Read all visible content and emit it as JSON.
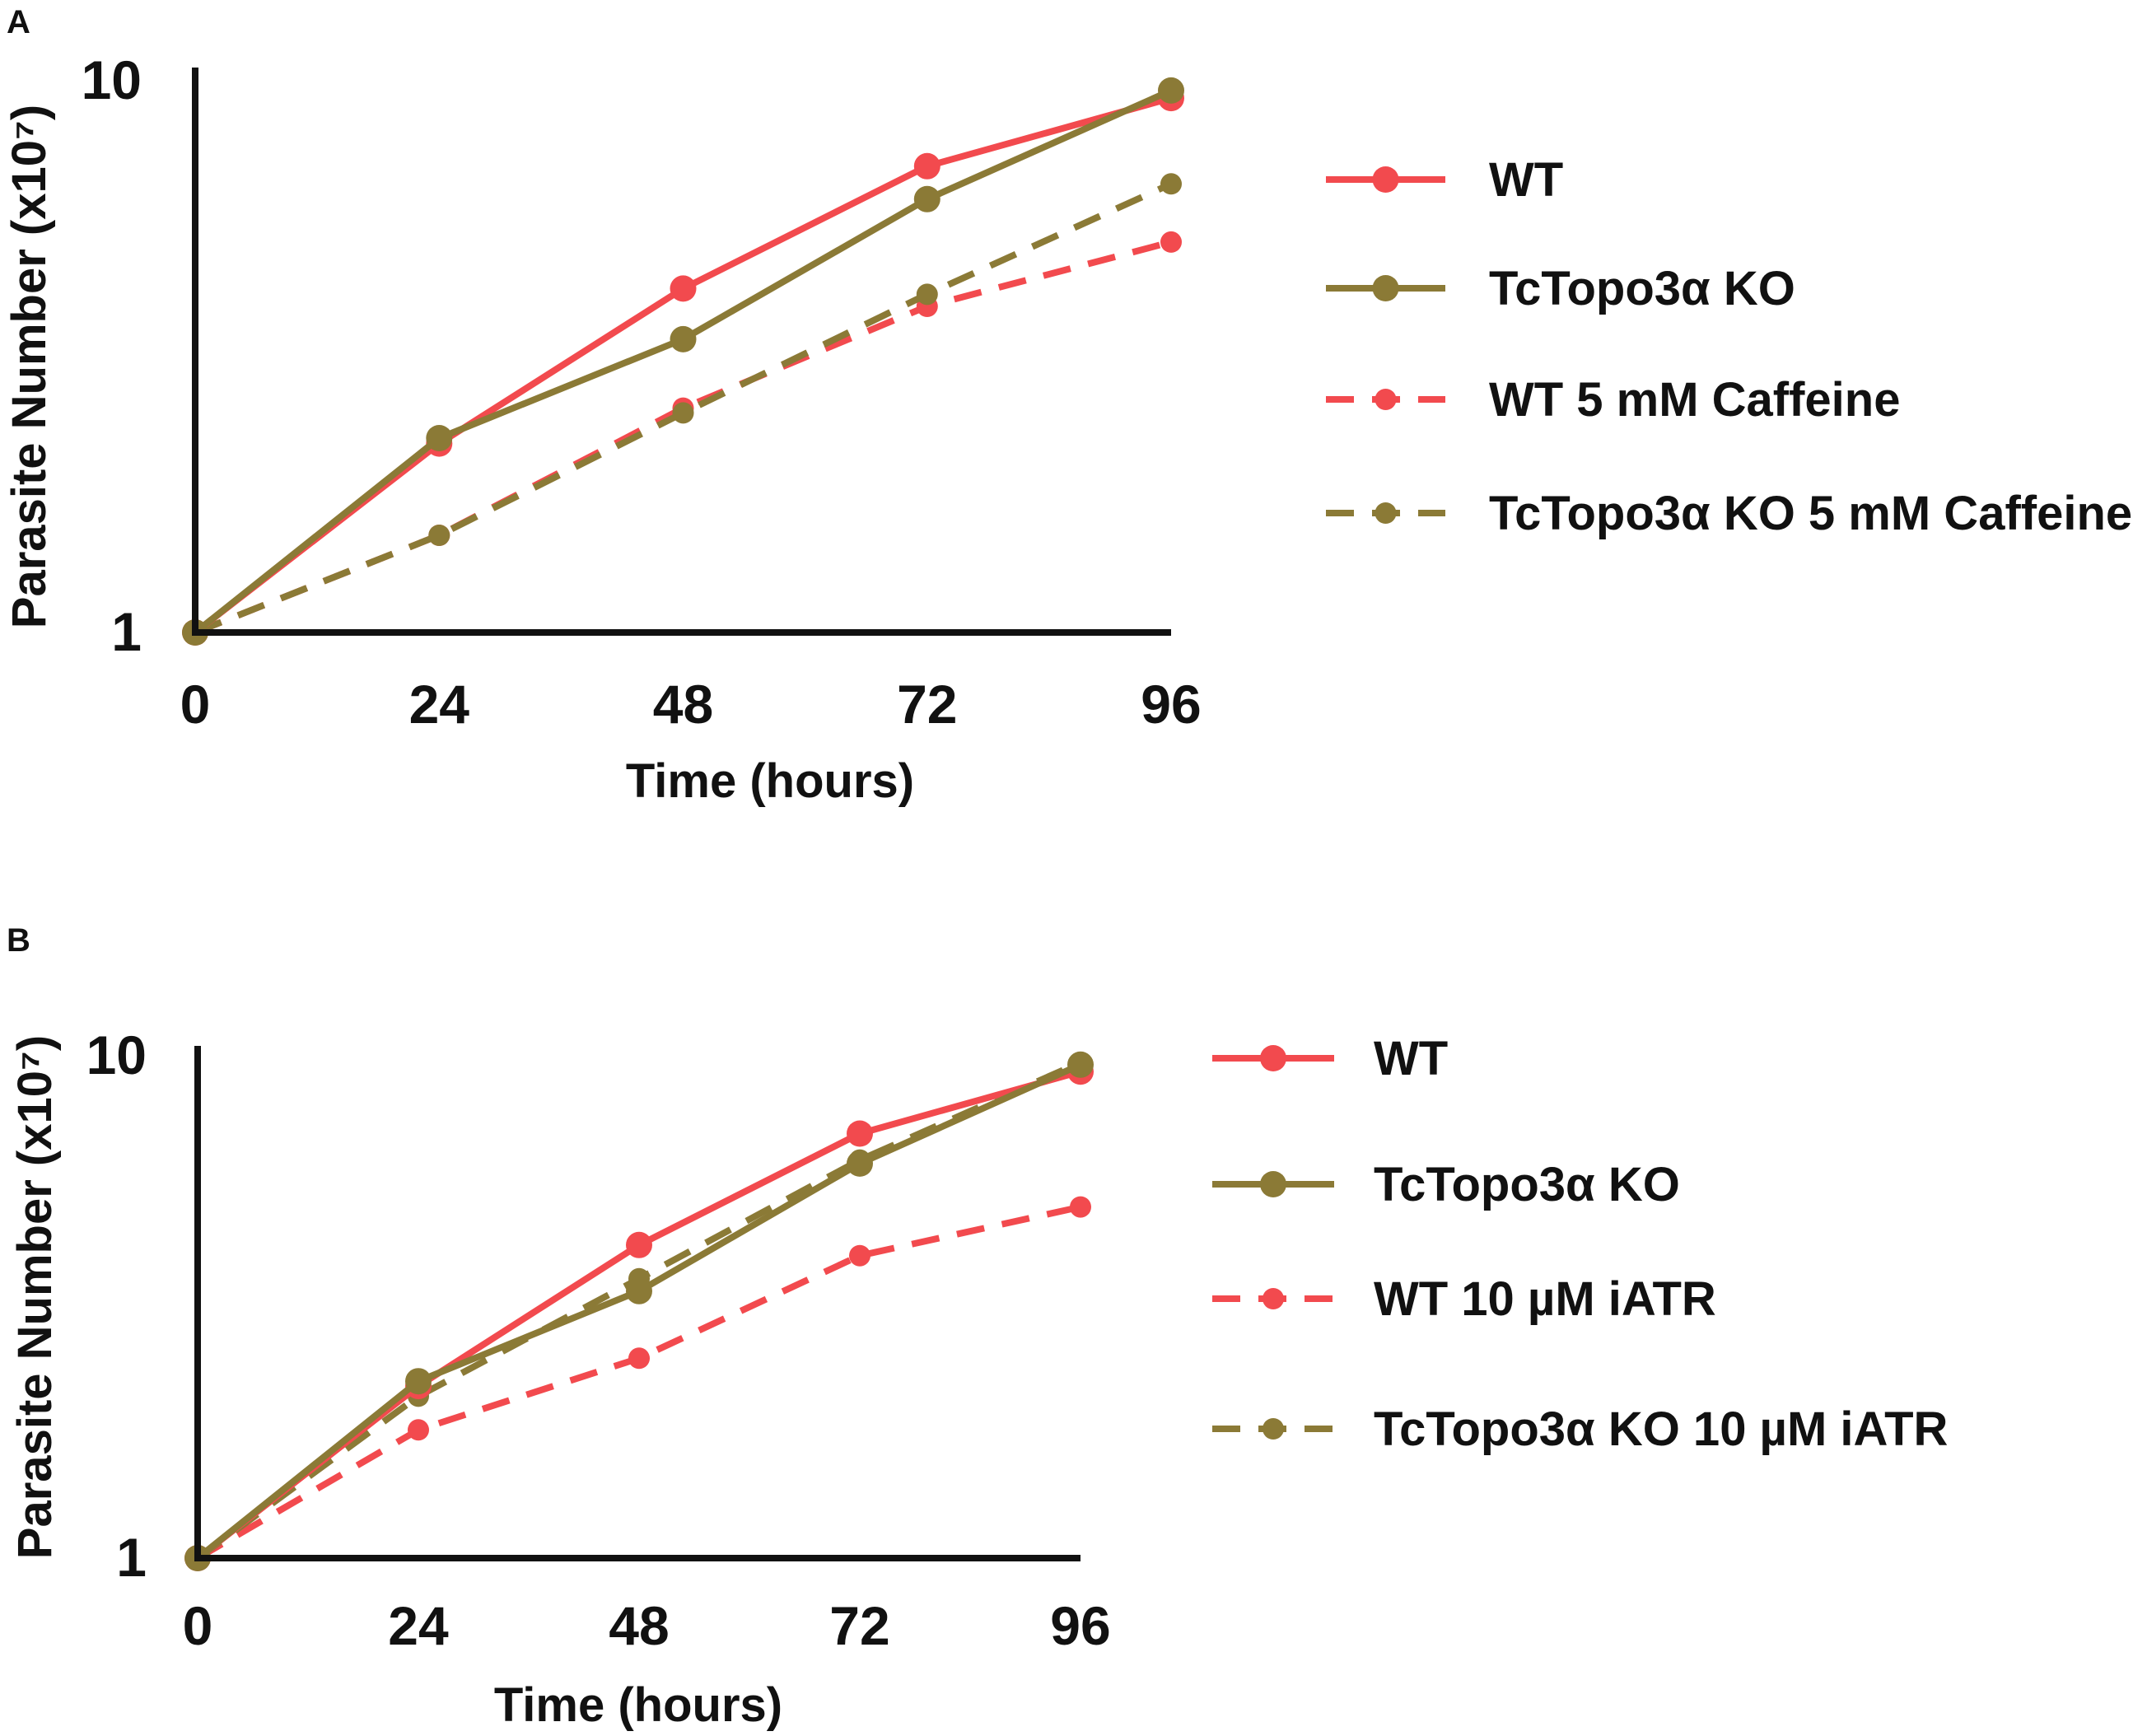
{
  "figure": {
    "panels": [
      {
        "label": "A"
      },
      {
        "label": "B"
      }
    ]
  },
  "colors": {
    "wt": "#f24a4e",
    "ko": "#8b7a36",
    "axis": "#111111"
  },
  "chart_data": [
    {
      "panel": "A",
      "type": "line",
      "title": "",
      "xlabel": "Time (hours)",
      "ylabel": "Parasite Number (x10⁷)",
      "yscale": "log",
      "xlim": [
        0,
        96
      ],
      "ylim": [
        1,
        10
      ],
      "x": [
        0,
        24,
        48,
        72,
        96
      ],
      "x_tick_labels": [
        "0",
        "24",
        "48",
        "72",
        "96"
      ],
      "y_ticks": [
        1,
        10
      ],
      "y_tick_labels": [
        "1",
        "10"
      ],
      "grid": false,
      "legend_position": "right",
      "series": [
        {
          "name": "WT",
          "color_key": "wt",
          "style": "solid",
          "values": [
            1,
            2.2,
            4.2,
            7.0,
            9.3
          ]
        },
        {
          "name": "TcTopo3α KO",
          "color_key": "ko",
          "style": "solid",
          "values": [
            1,
            2.25,
            3.4,
            6.1,
            9.6
          ]
        },
        {
          "name": "WT 5 mM Caffeine",
          "color_key": "wt",
          "style": "dashed",
          "values": [
            1,
            1.5,
            2.55,
            3.9,
            5.1
          ]
        },
        {
          "name": "TcTopo3α KO 5 mM Caffeine",
          "color_key": "ko",
          "style": "dashed",
          "values": [
            1,
            1.5,
            2.5,
            4.1,
            6.5
          ]
        }
      ]
    },
    {
      "panel": "B",
      "type": "line",
      "title": "",
      "xlabel": "Time (hours)",
      "ylabel": "Parasite Number (x10⁷)",
      "yscale": "log",
      "xlim": [
        0,
        96
      ],
      "ylim": [
        1,
        10
      ],
      "x": [
        0,
        24,
        48,
        72,
        96
      ],
      "x_tick_labels": [
        "0",
        "24",
        "48",
        "72",
        "96"
      ],
      "y_ticks": [
        1,
        10
      ],
      "y_tick_labels": [
        "1",
        "10"
      ],
      "grid": false,
      "legend_position": "right",
      "series": [
        {
          "name": "WT",
          "color_key": "wt",
          "style": "solid",
          "values": [
            1,
            2.2,
            4.2,
            7.0,
            9.3
          ]
        },
        {
          "name": "TcTopo3α KO",
          "color_key": "ko",
          "style": "solid",
          "values": [
            1,
            2.25,
            3.4,
            6.1,
            9.6
          ]
        },
        {
          "name": "WT 10 µM iATR",
          "color_key": "wt",
          "style": "dashed",
          "values": [
            1,
            1.8,
            2.5,
            4.0,
            5.0
          ]
        },
        {
          "name": "TcTopo3α KO 10 µM iATR",
          "color_key": "ko",
          "style": "dashed",
          "values": [
            1,
            2.1,
            3.6,
            6.2,
            9.7
          ]
        }
      ]
    }
  ]
}
